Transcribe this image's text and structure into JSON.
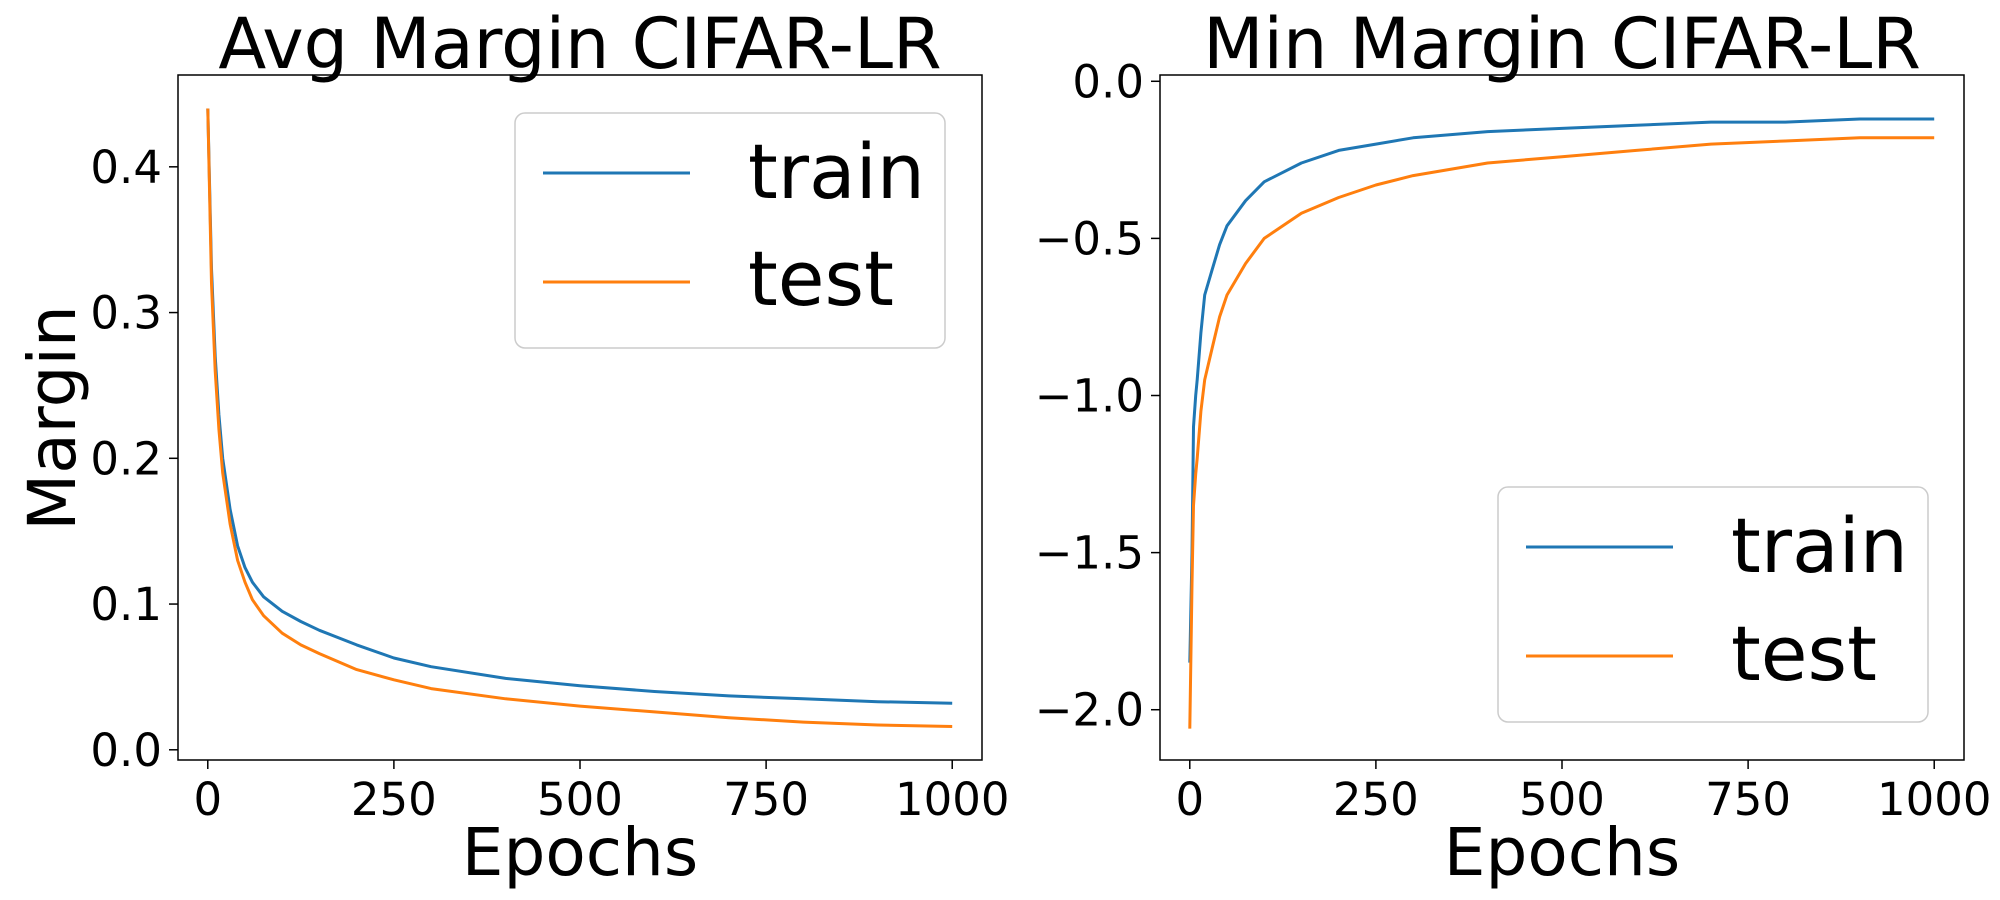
{
  "colors": {
    "train": "#1f77b4",
    "test": "#ff7f0e"
  },
  "chart_data": [
    {
      "type": "line",
      "title": "Avg Margin CIFAR-LR",
      "xlabel": "Epochs",
      "ylabel": "Margin",
      "xlim": [
        -40,
        1040
      ],
      "ylim": [
        -0.007,
        0.463
      ],
      "xticks": [
        0,
        250,
        500,
        750,
        1000
      ],
      "xtick_labels": [
        "0",
        "250",
        "500",
        "750",
        "1000"
      ],
      "yticks": [
        0.0,
        0.1,
        0.2,
        0.3,
        0.4
      ],
      "ytick_labels": [
        "0.0",
        "0.1",
        "0.2",
        "0.3",
        "0.4"
      ],
      "legend": {
        "placement": "top-right",
        "entries": [
          "train",
          "test"
        ]
      },
      "series": [
        {
          "name": "train",
          "x": [
            0,
            5,
            10,
            15,
            20,
            30,
            40,
            50,
            60,
            75,
            100,
            125,
            150,
            200,
            250,
            300,
            400,
            500,
            600,
            700,
            800,
            900,
            1000
          ],
          "y": [
            0.44,
            0.33,
            0.27,
            0.23,
            0.2,
            0.165,
            0.14,
            0.125,
            0.115,
            0.105,
            0.095,
            0.088,
            0.082,
            0.072,
            0.063,
            0.057,
            0.049,
            0.044,
            0.04,
            0.037,
            0.035,
            0.033,
            0.032
          ]
        },
        {
          "name": "test",
          "x": [
            0,
            5,
            10,
            15,
            20,
            30,
            40,
            50,
            60,
            75,
            100,
            125,
            150,
            200,
            250,
            300,
            400,
            500,
            600,
            700,
            800,
            900,
            1000
          ],
          "y": [
            0.44,
            0.32,
            0.26,
            0.22,
            0.19,
            0.155,
            0.13,
            0.115,
            0.103,
            0.092,
            0.08,
            0.072,
            0.066,
            0.055,
            0.048,
            0.042,
            0.035,
            0.03,
            0.026,
            0.022,
            0.019,
            0.017,
            0.016
          ]
        }
      ]
    },
    {
      "type": "line",
      "title": "Min Margin CIFAR-LR",
      "xlabel": "Epochs",
      "ylabel": "",
      "xlim": [
        -40,
        1040
      ],
      "ylim": [
        -2.16,
        0.02
      ],
      "xticks": [
        0,
        250,
        500,
        750,
        1000
      ],
      "xtick_labels": [
        "0",
        "250",
        "500",
        "750",
        "1000"
      ],
      "yticks": [
        0.0,
        -0.5,
        -1.0,
        -1.5,
        -2.0
      ],
      "ytick_labels": [
        "0.0",
        "−0.5",
        "−1.0",
        "−1.5",
        "−2.0"
      ],
      "legend": {
        "placement": "bottom-right",
        "entries": [
          "train",
          "test"
        ]
      },
      "series": [
        {
          "name": "train",
          "x": [
            0,
            3,
            5,
            8,
            10,
            15,
            20,
            30,
            40,
            50,
            75,
            100,
            150,
            200,
            250,
            300,
            400,
            500,
            600,
            700,
            800,
            900,
            1000
          ],
          "y": [
            -1.85,
            -1.5,
            -1.1,
            -1.0,
            -0.95,
            -0.8,
            -0.68,
            -0.6,
            -0.52,
            -0.46,
            -0.38,
            -0.32,
            -0.26,
            -0.22,
            -0.2,
            -0.18,
            -0.16,
            -0.15,
            -0.14,
            -0.13,
            -0.13,
            -0.12,
            -0.12
          ]
        },
        {
          "name": "test",
          "x": [
            0,
            3,
            5,
            8,
            10,
            15,
            20,
            30,
            40,
            50,
            75,
            100,
            150,
            200,
            250,
            300,
            400,
            500,
            600,
            700,
            800,
            900,
            1000
          ],
          "y": [
            -2.06,
            -1.6,
            -1.35,
            -1.25,
            -1.2,
            -1.05,
            -0.95,
            -0.85,
            -0.75,
            -0.68,
            -0.58,
            -0.5,
            -0.42,
            -0.37,
            -0.33,
            -0.3,
            -0.26,
            -0.24,
            -0.22,
            -0.2,
            -0.19,
            -0.18,
            -0.18
          ]
        }
      ]
    }
  ]
}
